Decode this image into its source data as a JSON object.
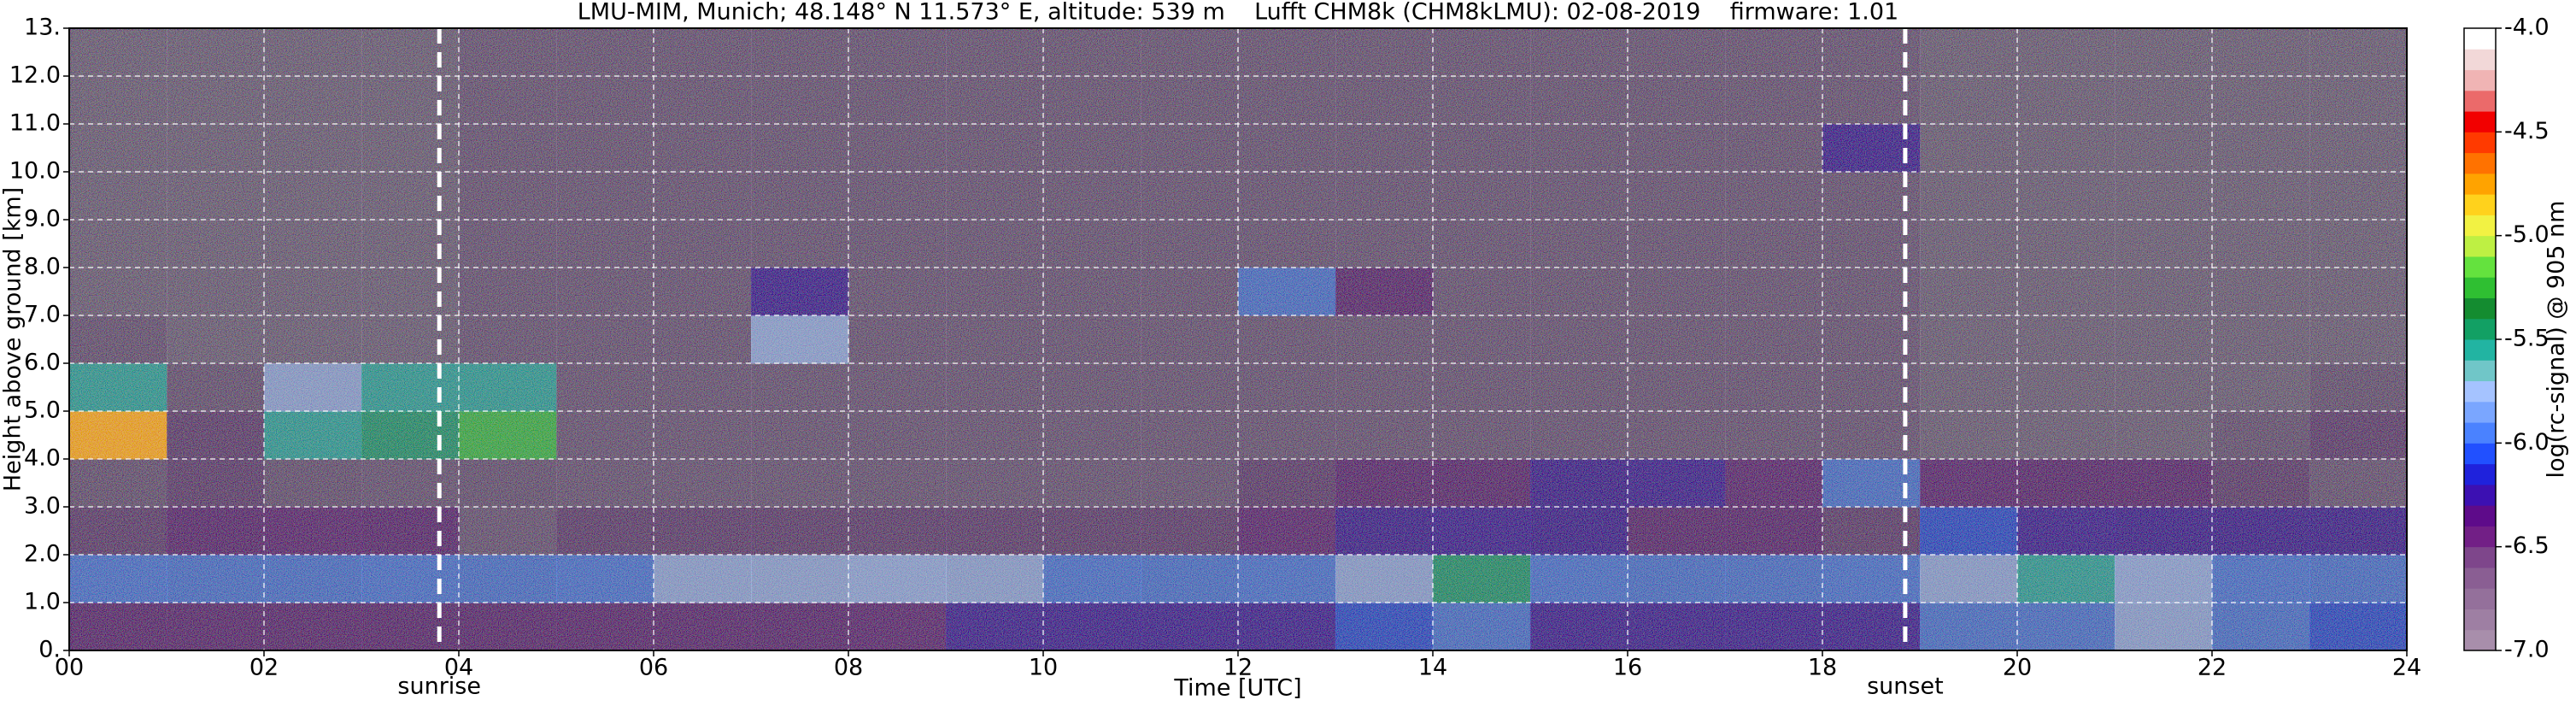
{
  "chart_data": {
    "type": "heatmap",
    "title": "LMU-MIM, Munich; 48.148° N 11.573° E, altitude: 539 m    Lufft CHM8k (CHM8kLMU): 02-08-2019    firmware: 1.01",
    "x_label": "Time [UTC]",
    "y_label": "Height above ground [km]",
    "xlim": [
      0,
      24
    ],
    "ylim": [
      0,
      13
    ],
    "xticks": [
      {
        "value": 0,
        "label": "00"
      },
      {
        "value": 2,
        "label": "02"
      },
      {
        "value": 4,
        "label": "04"
      },
      {
        "value": 6,
        "label": "06"
      },
      {
        "value": 8,
        "label": "08"
      },
      10,
      12,
      14,
      16,
      18,
      20,
      22,
      24
    ],
    "yticks": [
      {
        "value": 0,
        "label": "0."
      },
      {
        "value": 1,
        "label": "1.0"
      },
      {
        "value": 2,
        "label": "2.0"
      },
      {
        "value": 3,
        "label": "3.0"
      },
      {
        "value": 4,
        "label": "4.0"
      },
      {
        "value": 5,
        "label": "5.0"
      },
      {
        "value": 6,
        "label": "6.0"
      },
      {
        "value": 7,
        "label": "7.0"
      },
      {
        "value": 8,
        "label": "8.0"
      },
      {
        "value": 9,
        "label": "9.0"
      },
      {
        "value": 10,
        "label": "10.0"
      },
      {
        "value": 11,
        "label": "11.0"
      },
      {
        "value": 12,
        "label": "12.0"
      },
      {
        "value": 13,
        "label": "13."
      }
    ],
    "grid": true,
    "annotations": [
      {
        "x": 3.8,
        "label": "sunrise"
      },
      {
        "x": 18.85,
        "label": "sunset"
      }
    ],
    "z": [
      [
        -6.5,
        -6.5,
        -6.5,
        -6.5,
        -6.5,
        -6.5,
        -6.5,
        -6.5,
        -6.4,
        -6.2,
        -6.2,
        -6.2,
        -6.2,
        -6.1,
        -6.0,
        -6.2,
        -6.2,
        -6.2,
        -6.2,
        -6.0,
        -6.0,
        -5.8,
        -6.0,
        -6.1
      ],
      [
        -5.9,
        -6.0,
        -6.0,
        -5.9,
        -6.0,
        -5.9,
        -5.8,
        -5.8,
        -5.7,
        -5.8,
        -5.9,
        -6.0,
        -5.9,
        -5.8,
        -5.5,
        -5.9,
        -6.0,
        -6.0,
        -5.9,
        -5.8,
        -5.6,
        -5.7,
        -5.9,
        -6.0
      ],
      [
        -6.6,
        -6.5,
        -6.4,
        -6.5,
        -6.7,
        -6.6,
        -6.6,
        -6.6,
        -6.6,
        -6.6,
        -6.6,
        -6.6,
        -6.4,
        -6.3,
        -6.2,
        -6.3,
        -6.5,
        -6.5,
        -6.6,
        -6.1,
        -6.2,
        -6.3,
        -6.3,
        -6.3
      ],
      [
        -6.8,
        -6.6,
        -6.8,
        -6.7,
        -6.8,
        -6.7,
        -6.7,
        -6.7,
        -6.7,
        -6.7,
        -6.7,
        -6.7,
        -6.6,
        -6.5,
        -6.5,
        -6.3,
        -6.2,
        -6.4,
        -6.0,
        -6.4,
        -6.5,
        -6.5,
        -6.6,
        -6.7
      ],
      [
        -4.8,
        -6.6,
        -5.6,
        -5.5,
        -5.3,
        -6.7,
        -6.7,
        -6.7,
        -6.7,
        -6.7,
        -6.7,
        -6.7,
        -6.7,
        -6.7,
        -6.7,
        -6.7,
        -6.7,
        -6.7,
        -6.7,
        -6.9,
        -6.9,
        -6.9,
        -6.8,
        -6.6
      ],
      [
        -5.6,
        -6.8,
        -5.8,
        -5.6,
        -5.6,
        -6.7,
        -6.7,
        -6.7,
        -6.7,
        -6.7,
        -6.7,
        -6.7,
        -6.7,
        -6.7,
        -6.7,
        -6.7,
        -6.7,
        -6.7,
        -6.7,
        -6.9,
        -6.9,
        -6.9,
        -6.9,
        -6.8
      ],
      [
        -6.8,
        -6.9,
        -6.9,
        -6.9,
        -6.7,
        -6.7,
        -6.7,
        -5.7,
        -6.7,
        -6.7,
        -6.7,
        -6.7,
        -6.7,
        -6.7,
        -6.7,
        -6.7,
        -6.7,
        -6.7,
        -6.7,
        -6.9,
        -6.9,
        -6.9,
        -6.9,
        -6.9
      ],
      [
        -6.9,
        -6.9,
        -6.9,
        -6.9,
        -6.7,
        -6.7,
        -6.7,
        -6.2,
        -6.7,
        -6.7,
        -6.7,
        -6.7,
        -6.0,
        -6.5,
        -6.7,
        -6.7,
        -6.7,
        -6.7,
        -6.7,
        -6.9,
        -6.9,
        -6.9,
        -6.9,
        -6.9
      ],
      [
        -6.9,
        -6.9,
        -6.9,
        -6.9,
        -6.7,
        -6.7,
        -6.7,
        -6.7,
        -6.7,
        -6.7,
        -6.7,
        -6.7,
        -6.7,
        -6.7,
        -6.7,
        -6.7,
        -6.7,
        -6.7,
        -6.7,
        -6.9,
        -6.9,
        -6.9,
        -6.9,
        -6.9
      ],
      [
        -6.9,
        -6.9,
        -6.9,
        -6.9,
        -6.7,
        -6.7,
        -6.7,
        -6.7,
        -6.7,
        -6.7,
        -6.7,
        -6.7,
        -6.7,
        -6.7,
        -6.7,
        -6.7,
        -6.7,
        -6.7,
        -6.7,
        -6.9,
        -6.9,
        -6.9,
        -6.9,
        -6.9
      ],
      [
        -6.9,
        -6.9,
        -6.9,
        -6.9,
        -6.7,
        -6.7,
        -6.7,
        -6.7,
        -6.7,
        -6.7,
        -6.7,
        -6.7,
        -6.7,
        -6.7,
        -6.7,
        -6.7,
        -6.7,
        -6.7,
        -6.2,
        -6.9,
        -6.9,
        -6.9,
        -6.9,
        -6.9
      ],
      [
        -6.9,
        -6.9,
        -6.9,
        -6.9,
        -6.7,
        -6.7,
        -6.7,
        -6.7,
        -6.7,
        -6.7,
        -6.7,
        -6.7,
        -6.7,
        -6.7,
        -6.7,
        -6.7,
        -6.7,
        -6.7,
        -6.7,
        -6.9,
        -6.9,
        -6.9,
        -6.9,
        -6.9
      ],
      [
        -6.9,
        -6.9,
        -6.9,
        -6.9,
        -6.7,
        -6.7,
        -6.7,
        -6.7,
        -6.7,
        -6.7,
        -6.7,
        -6.7,
        -6.7,
        -6.7,
        -6.7,
        -6.7,
        -6.7,
        -6.7,
        -6.7,
        -6.9,
        -6.9,
        -6.9,
        -6.9,
        -6.9
      ]
    ],
    "colorbar": {
      "label": "log(rc-signal) @ 905 nm",
      "lim": [
        -7.0,
        -4.0
      ],
      "ticks": [
        {
          "value": -7,
          "label": "-7.0"
        },
        {
          "value": -6.5,
          "label": "-6.5"
        },
        {
          "value": -6,
          "label": "-6.0"
        },
        {
          "value": -5.5,
          "label": "-5.5"
        },
        {
          "value": -5,
          "label": "-5.0"
        },
        {
          "value": -4.5,
          "label": "-4.5"
        },
        {
          "value": -4,
          "label": "-4.0"
        }
      ],
      "colors": [
        "#a88eab",
        "#9e7fa3",
        "#94709b",
        "#8a5e93",
        "#7e468b",
        "#721f86",
        "#5e0b8a",
        "#3c10b2",
        "#1f22dc",
        "#2150ff",
        "#4a82ff",
        "#7aa6ff",
        "#a5c3ff",
        "#70c6c8",
        "#22b4a2",
        "#12a064",
        "#148c30",
        "#2fbf32",
        "#64e23e",
        "#bef043",
        "#f2f243",
        "#ffd21c",
        "#ffa300",
        "#ff7200",
        "#ff3a00",
        "#f20000",
        "#eb6a6a",
        "#f0b4b4",
        "#f2d8d8",
        "#ffffff"
      ]
    }
  }
}
